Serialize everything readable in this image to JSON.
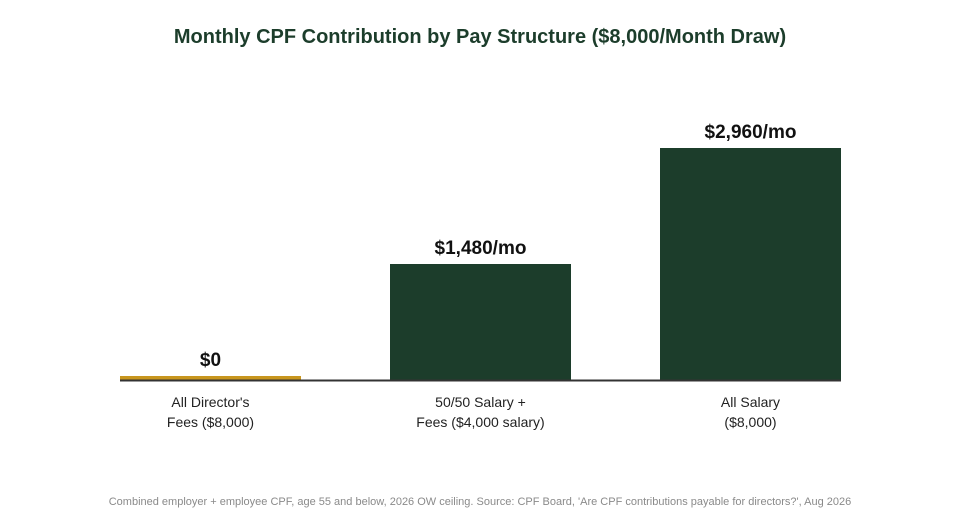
{
  "chart_data": {
    "type": "bar",
    "title": "Monthly CPF Contribution by Pay Structure ($8,000/Month Draw)",
    "categories": [
      [
        "All Director's",
        "Fees ($8,000)"
      ],
      [
        "50/50 Salary +",
        "Fees ($4,000 salary)"
      ],
      [
        "All Salary",
        "($8,000)"
      ]
    ],
    "values": [
      0,
      1480,
      2960
    ],
    "data_labels": [
      "$0",
      "$1,480/mo",
      "$2,960/mo"
    ],
    "bar_colors": [
      "#c8961e",
      "#1c3d2b",
      "#1c3d2b"
    ],
    "xlabel": "",
    "ylabel": "",
    "ylim": [
      0,
      2960
    ],
    "grid": false,
    "legend": "none"
  },
  "footer": {
    "source": "Combined employer + employee CPF, age 55 and below, 2026 OW ceiling. Source: CPF Board, 'Are CPF contributions payable for directors?', Aug 2026"
  },
  "colors": {
    "title": "#1c3d2b",
    "baseline": "#333333",
    "label": "#111111",
    "tick_label": "#222222"
  }
}
